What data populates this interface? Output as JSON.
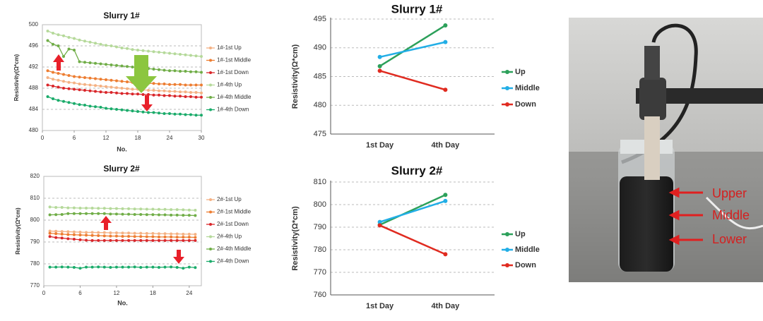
{
  "chart_data": [
    {
      "type": "line",
      "title": "Slurry 1#",
      "y_label": "Resistivity(Ω*cm)",
      "x_label": "No.",
      "x": [
        1,
        2,
        3,
        4,
        5,
        6,
        7,
        8,
        9,
        10,
        11,
        12,
        13,
        14,
        15,
        16,
        17,
        18,
        19,
        20,
        21,
        22,
        23,
        24,
        25,
        26,
        27,
        28,
        29,
        30
      ],
      "xlim": [
        0,
        30
      ],
      "xticks": [
        0,
        6,
        12,
        18,
        24,
        30
      ],
      "ylim": [
        480,
        500
      ],
      "yticks": [
        480,
        484,
        488,
        492,
        496,
        500
      ],
      "grid": true,
      "legend": "right",
      "series": [
        {
          "name": "1#-1st Up",
          "color": "#f4b183",
          "values": [
            490.0,
            489.7,
            489.5,
            489.3,
            489.1,
            489.0,
            488.8,
            488.7,
            488.6,
            488.5,
            488.4,
            488.3,
            488.2,
            488.1,
            488.0,
            487.9,
            487.8,
            487.8,
            487.7,
            487.6,
            487.6,
            487.5,
            487.5,
            487.4,
            487.4,
            487.3,
            487.3,
            487.2,
            487.2,
            487.1
          ]
        },
        {
          "name": "1#-1st Middle",
          "color": "#ed7d31",
          "values": [
            491.3,
            491.0,
            490.8,
            490.6,
            490.4,
            490.2,
            490.1,
            490.0,
            489.9,
            489.8,
            489.7,
            489.6,
            489.5,
            489.4,
            489.3,
            489.2,
            489.1,
            489.0,
            489.0,
            488.9,
            488.9,
            488.8,
            488.8,
            488.7,
            488.7,
            488.7,
            488.6,
            488.6,
            488.6,
            488.6
          ]
        },
        {
          "name": "1#-1st Down",
          "color": "#d9262a",
          "values": [
            488.6,
            488.4,
            488.2,
            488.0,
            487.9,
            487.8,
            487.7,
            487.6,
            487.5,
            487.4,
            487.3,
            487.2,
            487.2,
            487.1,
            487.0,
            487.0,
            486.9,
            486.9,
            486.8,
            486.8,
            486.7,
            486.7,
            486.6,
            486.6,
            486.5,
            486.5,
            486.4,
            486.4,
            486.3,
            486.3
          ]
        },
        {
          "name": "1#-4th Up",
          "color": "#b5d99a",
          "values": [
            498.8,
            498.4,
            498.1,
            497.9,
            497.6,
            497.4,
            497.1,
            496.9,
            496.7,
            496.5,
            496.3,
            496.1,
            496.0,
            495.8,
            495.6,
            495.5,
            495.3,
            495.2,
            495.1,
            495.0,
            494.9,
            494.8,
            494.7,
            494.6,
            494.5,
            494.4,
            494.3,
            494.2,
            494.1,
            494.0
          ]
        },
        {
          "name": "1#-4th Middle",
          "color": "#70ad47",
          "values": [
            497.0,
            496.3,
            496.0,
            494.0,
            495.4,
            495.2,
            493.0,
            492.9,
            492.8,
            492.7,
            492.6,
            492.5,
            492.4,
            492.3,
            492.2,
            492.1,
            492.0,
            491.9,
            491.8,
            491.7,
            491.6,
            491.5,
            491.4,
            491.3,
            491.3,
            491.2,
            491.2,
            491.1,
            491.1,
            491.0
          ]
        },
        {
          "name": "1#-4th Down",
          "color": "#1aab6a",
          "values": [
            486.4,
            486.0,
            485.7,
            485.5,
            485.3,
            485.1,
            484.9,
            484.8,
            484.6,
            484.5,
            484.4,
            484.2,
            484.1,
            484.0,
            483.9,
            483.8,
            483.7,
            483.6,
            483.5,
            483.4,
            483.4,
            483.3,
            483.2,
            483.2,
            483.1,
            483.1,
            483.0,
            483.0,
            482.9,
            482.9
          ]
        }
      ]
    },
    {
      "type": "line",
      "title": "Slurry 2#",
      "y_label": "Resistivity(Ω*cm)",
      "x_label": "No.",
      "x": [
        1,
        2,
        3,
        4,
        5,
        6,
        7,
        8,
        9,
        10,
        11,
        12,
        13,
        14,
        15,
        16,
        17,
        18,
        19,
        20,
        21,
        22,
        23,
        24,
        25
      ],
      "xlim": [
        0,
        26
      ],
      "xticks": [
        0,
        6,
        12,
        18,
        24
      ],
      "ylim": [
        770,
        820
      ],
      "yticks": [
        770,
        780,
        790,
        800,
        810,
        820
      ],
      "grid": true,
      "legend": "right",
      "series": [
        {
          "name": "2#-1st Up",
          "color": "#f4b183",
          "values": [
            795.0,
            794.9,
            794.8,
            794.7,
            794.6,
            794.5,
            794.4,
            794.4,
            794.3,
            794.3,
            794.2,
            794.2,
            794.1,
            794.1,
            794.0,
            794.0,
            793.9,
            793.9,
            793.8,
            793.8,
            793.7,
            793.7,
            793.6,
            793.6,
            793.5
          ]
        },
        {
          "name": "2#-1st Middle",
          "color": "#ed7d31",
          "values": [
            794.0,
            793.8,
            793.6,
            793.4,
            793.3,
            793.2,
            793.1,
            793.0,
            792.9,
            792.8,
            792.7,
            792.7,
            792.6,
            792.6,
            792.5,
            792.5,
            792.4,
            792.4,
            792.3,
            792.3,
            792.3,
            792.2,
            792.2,
            792.2,
            792.1
          ]
        },
        {
          "name": "2#-1st Down",
          "color": "#d9262a",
          "values": [
            792.5,
            792.0,
            791.8,
            791.5,
            791.3,
            791.0,
            790.8,
            790.7,
            790.7,
            790.7,
            790.7,
            790.7,
            790.7,
            790.7,
            790.7,
            790.7,
            790.7,
            790.7,
            790.7,
            790.7,
            790.7,
            790.7,
            790.7,
            790.7,
            790.7
          ]
        },
        {
          "name": "2#-4th Up",
          "color": "#b5d99a",
          "values": [
            806.0,
            805.8,
            805.8,
            805.6,
            805.6,
            805.5,
            805.5,
            805.5,
            805.4,
            805.4,
            805.3,
            805.3,
            805.2,
            805.2,
            805.1,
            805.1,
            805.0,
            805.0,
            804.9,
            804.9,
            804.8,
            804.8,
            804.7,
            804.6,
            804.5
          ]
        },
        {
          "name": "2#-4th Middle",
          "color": "#70ad47",
          "values": [
            802.4,
            802.5,
            802.6,
            803.0,
            803.0,
            803.0,
            803.0,
            803.0,
            803.0,
            803.0,
            802.8,
            802.8,
            802.7,
            802.7,
            802.6,
            802.6,
            802.5,
            802.5,
            802.4,
            802.4,
            802.3,
            802.3,
            802.2,
            802.2,
            802.1
          ]
        },
        {
          "name": "2#-4th Down",
          "color": "#1aab6a",
          "values": [
            778.5,
            778.5,
            778.6,
            778.5,
            778.4,
            778.0,
            778.5,
            778.5,
            778.6,
            778.5,
            778.4,
            778.5,
            778.5,
            778.5,
            778.6,
            778.4,
            778.5,
            778.5,
            778.4,
            778.5,
            778.6,
            778.4,
            778.0,
            778.5,
            778.3
          ]
        }
      ]
    },
    {
      "type": "line",
      "title": "Slurry 1#",
      "y_label": "Resistivity(Ω*cm)",
      "categories": [
        "1st Day",
        "4th Day"
      ],
      "ylim": [
        475,
        495
      ],
      "yticks": [
        475,
        480,
        485,
        490,
        495
      ],
      "grid": true,
      "legend": "right",
      "series": [
        {
          "name": "Up",
          "color": "#2ca05a",
          "values": [
            486.8,
            493.9
          ]
        },
        {
          "name": "Middle",
          "color": "#22aee6",
          "values": [
            488.4,
            491.0
          ]
        },
        {
          "name": "Down",
          "color": "#e02b20",
          "values": [
            486.0,
            482.7
          ]
        }
      ]
    },
    {
      "type": "line",
      "title": "Slurry 2#",
      "y_label": "Resistivity(Ω*cm)",
      "categories": [
        "1st Day",
        "4th Day"
      ],
      "ylim": [
        760,
        810
      ],
      "yticks": [
        760,
        770,
        780,
        790,
        800,
        810
      ],
      "grid": true,
      "legend": "right",
      "series": [
        {
          "name": "Up",
          "color": "#2ca05a",
          "values": [
            791.0,
            804.3
          ]
        },
        {
          "name": "Middle",
          "color": "#22aee6",
          "values": [
            792.3,
            801.6
          ]
        },
        {
          "name": "Down",
          "color": "#e02b20",
          "values": [
            790.8,
            778.0
          ]
        }
      ]
    }
  ],
  "photo": {
    "labels": [
      "Upper",
      "Middle",
      "Lower"
    ]
  }
}
